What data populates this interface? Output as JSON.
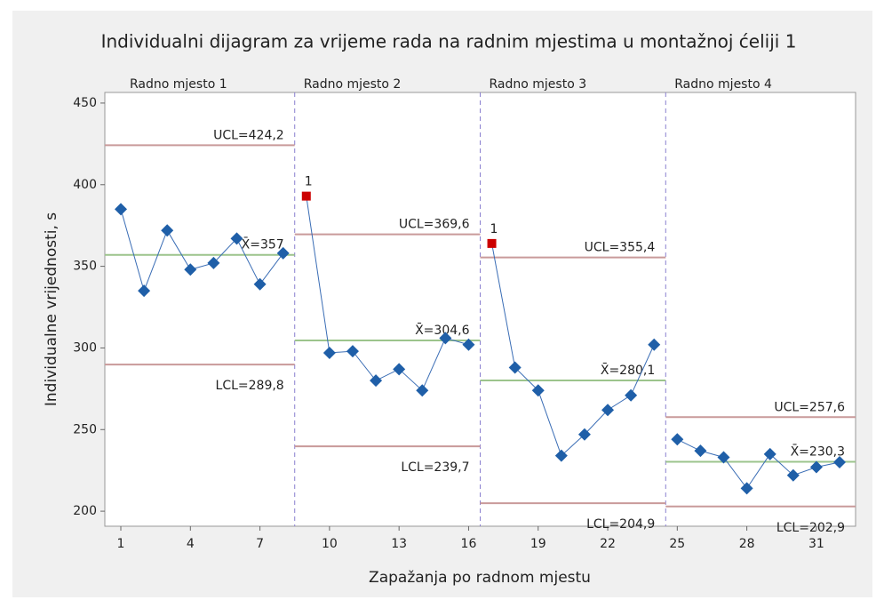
{
  "chart_data": {
    "type": "control",
    "title": "Individualni dijagram za vrijeme rada na radnim mjestima u montažnoj ćeliji 1",
    "x_label": "Zapažanja po radnom mjestu",
    "y_label": "Individualne vrijednosti, s",
    "xlim": [
      0.31,
      32.69
    ],
    "ylim": [
      190.8,
      456.5
    ],
    "xticks": [
      1,
      4,
      7,
      10,
      13,
      16,
      19,
      22,
      25,
      28,
      31
    ],
    "yticks": [
      200,
      250,
      300,
      350,
      400,
      450
    ],
    "point_color": "#1f5fa8",
    "line_color": "#3a6db5",
    "flag_color": "#cc0000",
    "limit_color": "#c99a9a",
    "center_color": "#9cc48c",
    "stage_line_color": "#8a7fd0",
    "stages": [
      {
        "name": "Radno mjesto 1",
        "x": [
          1,
          2,
          3,
          4,
          5,
          6,
          7,
          8
        ],
        "values": [
          385,
          335,
          372,
          348,
          352,
          367,
          339,
          358
        ],
        "point_labels": [
          null,
          null,
          null,
          null,
          null,
          null,
          null,
          null
        ],
        "ucl": {
          "value": 424.2,
          "label": "UCL=424,2"
        },
        "center": {
          "value": 357,
          "label": "X̄=357"
        },
        "lcl": {
          "value": 289.8,
          "label": "LCL=289,8"
        }
      },
      {
        "name": "Radno mjesto 2",
        "x": [
          9,
          10,
          11,
          12,
          13,
          14,
          15,
          16
        ],
        "values": [
          393,
          297,
          298,
          280,
          287,
          274,
          306,
          302
        ],
        "point_labels": [
          "1",
          null,
          null,
          null,
          null,
          null,
          null,
          null
        ],
        "ucl": {
          "value": 369.6,
          "label": "UCL=369,6"
        },
        "center": {
          "value": 304.6,
          "label": "X̄=304,6"
        },
        "lcl": {
          "value": 239.7,
          "label": "LCL=239,7"
        }
      },
      {
        "name": "Radno mjesto 3",
        "x": [
          17,
          18,
          19,
          20,
          21,
          22,
          23,
          24
        ],
        "values": [
          364,
          288,
          274,
          234,
          247,
          262,
          271,
          302
        ],
        "point_labels": [
          "1",
          null,
          null,
          null,
          null,
          null,
          null,
          null
        ],
        "ucl": {
          "value": 355.4,
          "label": "UCL=355,4"
        },
        "center": {
          "value": 280.1,
          "label": "X̄=280,1"
        },
        "lcl": {
          "value": 204.9,
          "label": "LCL=204,9"
        }
      },
      {
        "name": "Radno mjesto 4",
        "x": [
          25,
          26,
          27,
          28,
          29,
          30,
          31,
          32
        ],
        "values": [
          244,
          237,
          233,
          214,
          235,
          222,
          227,
          230
        ],
        "point_labels": [
          null,
          null,
          null,
          null,
          null,
          null,
          null,
          null
        ],
        "ucl": {
          "value": 257.6,
          "label": "UCL=257,6"
        },
        "center": {
          "value": 230.3,
          "label": "X̄=230,3"
        },
        "lcl": {
          "value": 202.9,
          "label": "LCL=202,9"
        }
      }
    ]
  }
}
